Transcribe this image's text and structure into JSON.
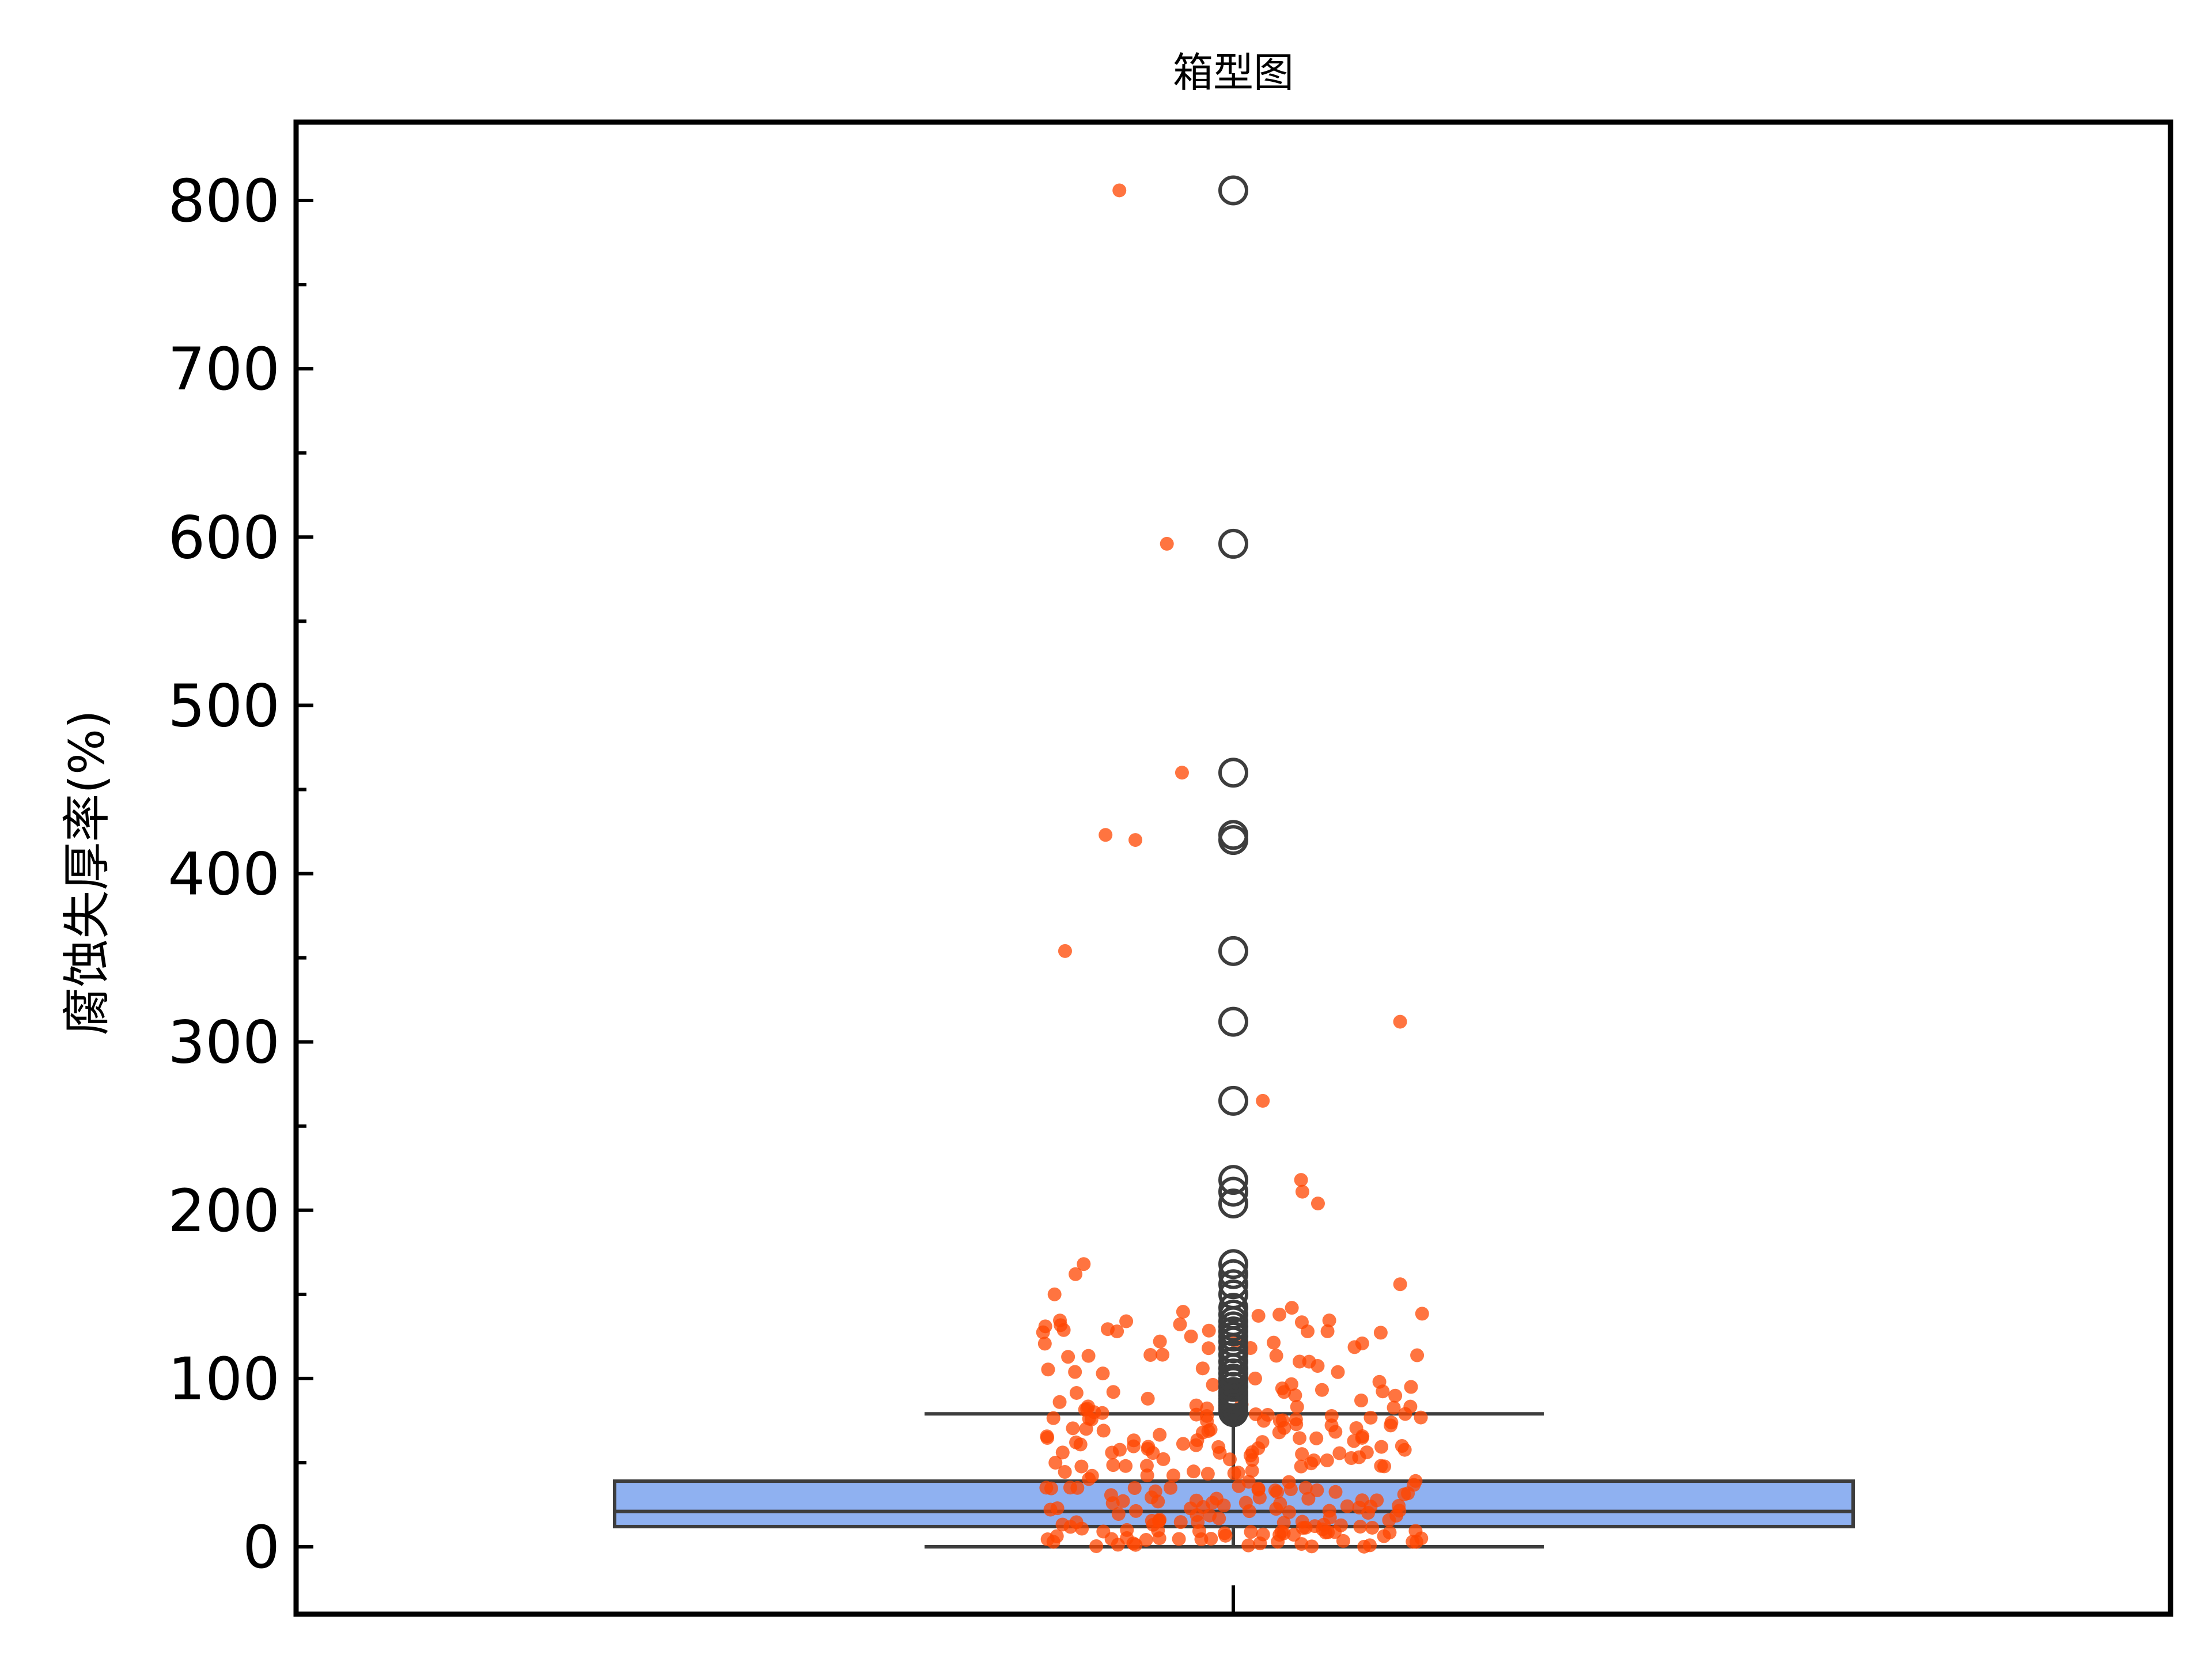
{
  "chart_data": {
    "type": "box",
    "title": "箱型图",
    "xlabel": "",
    "ylabel": "腐蚀失厚率(%)",
    "ylim": [
      -40,
      850
    ],
    "yticks": [
      "0",
      "100",
      "200",
      "300",
      "400",
      "500",
      "600",
      "700",
      "800"
    ],
    "grid": false,
    "legend": "none",
    "box": {
      "min": 0,
      "q1": 12,
      "median": 21,
      "q3": 39,
      "max": 79,
      "outliers": [
        80,
        82,
        84,
        86,
        88,
        90,
        92,
        95,
        98,
        100,
        103,
        106,
        110,
        114,
        118,
        122,
        125,
        128,
        131,
        134,
        138,
        142,
        150,
        156,
        162,
        168,
        204,
        211,
        218,
        265,
        312,
        354,
        420,
        423,
        460,
        596,
        806
      ]
    },
    "colors": {
      "box_fill": "#8fb1f1",
      "box_edge": "#3d3d3d",
      "strip_points": "#ff4500"
    }
  }
}
